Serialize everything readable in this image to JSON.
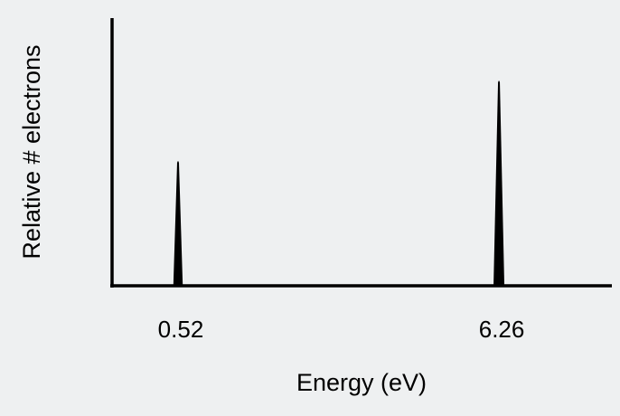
{
  "chart_data": {
    "type": "bar",
    "title": "",
    "xlabel": "Energy (eV)",
    "ylabel": "Relative # electrons",
    "x_ticks": [
      "0.52",
      "6.26"
    ],
    "peaks": [
      {
        "energy": 0.52,
        "relative_height": 0.61
      },
      {
        "energy": 6.26,
        "relative_height": 1.0
      }
    ],
    "xlim": [
      -0.66,
      8.28
    ],
    "ylim": [
      0,
      1.3
    ],
    "grid": false,
    "legend": "none",
    "bar_color": "#000000",
    "axis_color": "#000000"
  }
}
